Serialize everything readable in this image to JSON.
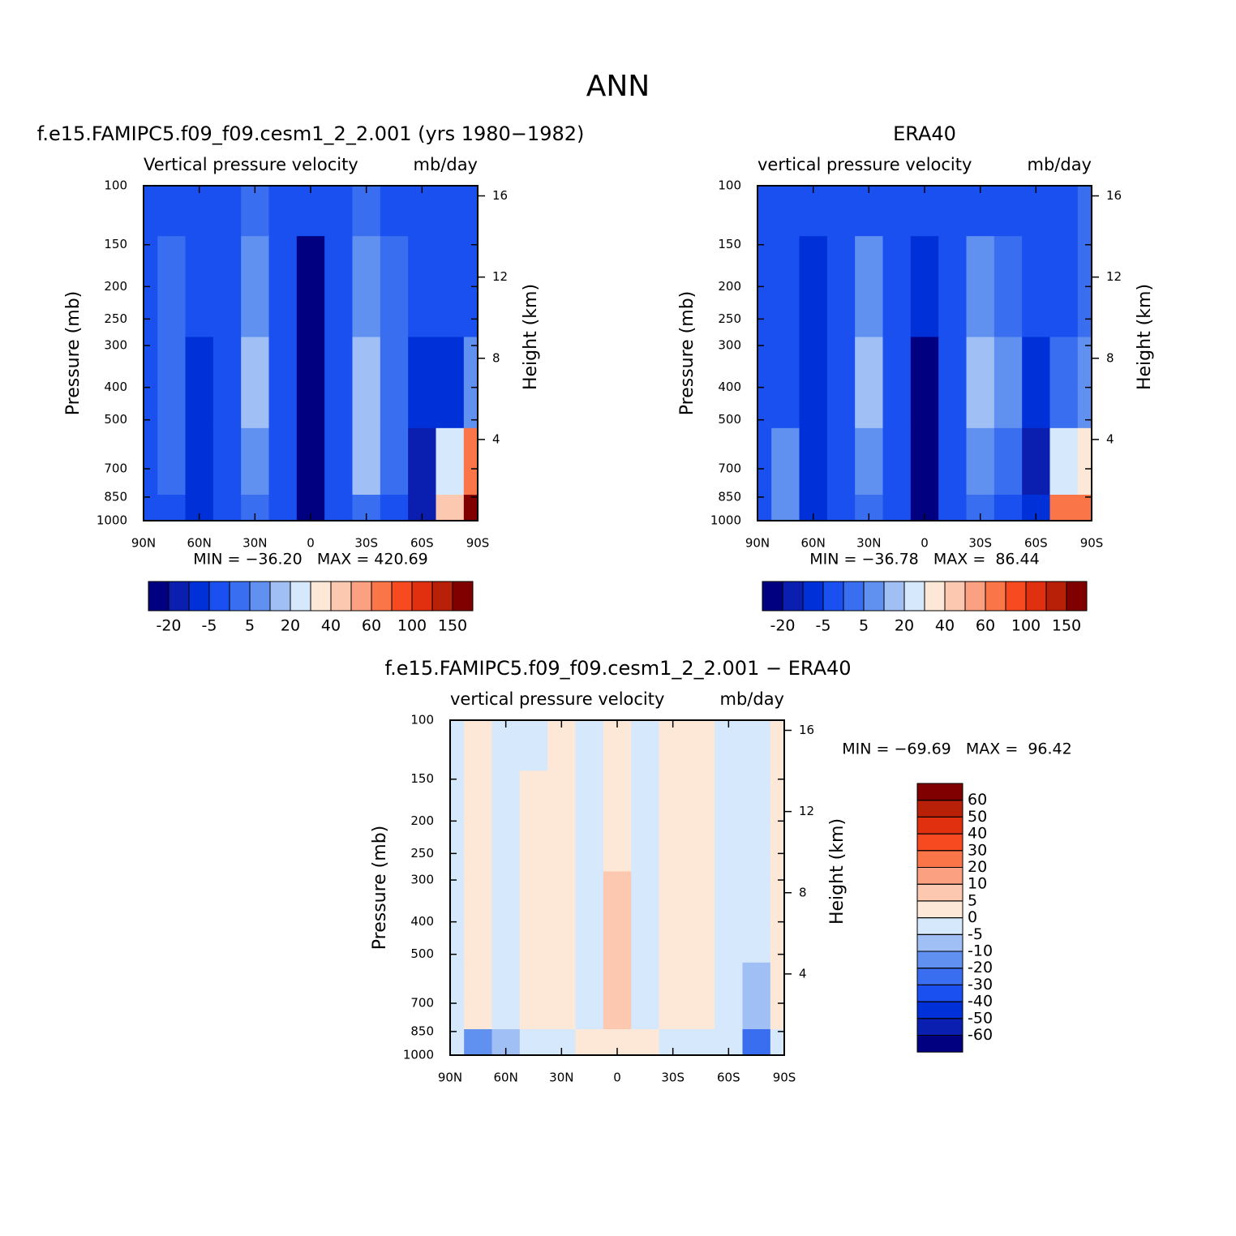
{
  "title": "ANN",
  "chart_data": [
    {
      "type": "contour",
      "title": "f.e15.FAMIPC5.f09_f09.cesm1_2_2.001 (yrs 1980−1982)",
      "subtitle": "Vertical pressure velocity",
      "units": "mb/day",
      "ylabel": "Pressure (mb)",
      "y2label": "Height (km)",
      "annotation": "MIN = −36.20   MAX = 420.69",
      "x": [
        90,
        75,
        60,
        45,
        30,
        15,
        0,
        -15,
        -30,
        -45,
        -60,
        -75,
        -90
      ],
      "y": [
        100,
        200,
        400,
        700,
        1000
      ],
      "z": [
        [
          -2,
          -2,
          -2,
          -1,
          3,
          -2,
          -3,
          -2,
          4,
          -2,
          -2,
          -2,
          -2
        ],
        [
          -3,
          2,
          -3,
          -2,
          10,
          -3,
          -25,
          -2,
          12,
          2,
          -3,
          -4,
          -2
        ],
        [
          -4,
          2,
          -8,
          -3,
          15,
          -3,
          -25,
          -3,
          18,
          4,
          -10,
          -8,
          8
        ],
        [
          -3,
          4,
          -8,
          -2,
          8,
          -2,
          -25,
          -2,
          18,
          4,
          -15,
          25,
          60
        ],
        [
          -5,
          -3,
          -8,
          -2,
          3,
          -3,
          -22,
          -3,
          4,
          -3,
          -15,
          40,
          150
        ]
      ],
      "xlim": [
        90,
        -90
      ],
      "xticks": [
        {
          "value": 90,
          "label": "90N"
        },
        {
          "value": 60,
          "label": "60N"
        },
        {
          "value": 30,
          "label": "30N"
        },
        0,
        {
          "value": -30,
          "label": "30S"
        },
        {
          "value": -60,
          "label": "60S"
        },
        {
          "value": -90,
          "label": "90S"
        }
      ],
      "ylim": [
        1000,
        100
      ],
      "log_y": true,
      "yticks": [
        100,
        150,
        200,
        250,
        300,
        400,
        500,
        700,
        850,
        1000
      ],
      "y2lim": [
        0,
        16.5
      ],
      "y2ticks": [
        4,
        8,
        12,
        16
      ],
      "colorbar": {
        "orientation": "horizontal",
        "levels": [
          -20,
          null,
          -5,
          null,
          5,
          null,
          20,
          null,
          40,
          null,
          60,
          null,
          100,
          null,
          150
        ],
        "colors": [
          "#000080",
          "#0a1fb0",
          "#0030d8",
          "#1a50f0",
          "#3a6ef0",
          "#6090f0",
          "#a0bff5",
          "#d6e8fb",
          "#fde8d8",
          "#fcc8b0",
          "#fba080",
          "#fa7548",
          "#f84a20",
          "#e03010",
          "#b82008",
          "#800000"
        ]
      }
    },
    {
      "type": "contour",
      "title": "ERA40",
      "subtitle": "vertical pressure velocity",
      "units": "mb/day",
      "ylabel": "Pressure (mb)",
      "y2label": "Height (km)",
      "annotation": "MIN = −36.78   MAX =  86.44",
      "x": [
        90,
        75,
        60,
        45,
        30,
        15,
        0,
        -15,
        -30,
        -45,
        -60,
        -75,
        -90
      ],
      "y": [
        100,
        200,
        400,
        700,
        1000
      ],
      "z": [
        [
          -2,
          -3,
          -2,
          -1,
          -2,
          -2,
          -3,
          -2,
          -2,
          -2,
          -3,
          -2,
          2
        ],
        [
          -3,
          -2,
          -6,
          -2,
          8,
          -4,
          -10,
          -2,
          10,
          2,
          -4,
          -3,
          4
        ],
        [
          -4,
          -3,
          -8,
          -2,
          18,
          -3,
          -25,
          -3,
          18,
          5,
          -10,
          4,
          10
        ],
        [
          -3,
          5,
          -8,
          -2,
          8,
          -3,
          -25,
          -3,
          12,
          2,
          -15,
          20,
          30
        ],
        [
          -4,
          10,
          -8,
          -2,
          2,
          -3,
          -22,
          -3,
          2,
          -4,
          -12,
          60,
          60
        ]
      ],
      "xlim": [
        90,
        -90
      ],
      "xticks": [
        {
          "value": 90,
          "label": "90N"
        },
        {
          "value": 60,
          "label": "60N"
        },
        {
          "value": 30,
          "label": "30N"
        },
        0,
        {
          "value": -30,
          "label": "30S"
        },
        {
          "value": -60,
          "label": "60S"
        },
        {
          "value": -90,
          "label": "90S"
        }
      ],
      "ylim": [
        1000,
        100
      ],
      "log_y": true,
      "yticks": [
        100,
        150,
        200,
        250,
        300,
        400,
        500,
        700,
        850,
        1000
      ],
      "y2lim": [
        0,
        16.5
      ],
      "y2ticks": [
        4,
        8,
        12,
        16
      ],
      "colorbar": {
        "orientation": "horizontal",
        "levels": [
          -20,
          null,
          -5,
          null,
          5,
          null,
          20,
          null,
          40,
          null,
          60,
          null,
          100,
          null,
          150
        ],
        "colors": [
          "#000080",
          "#0a1fb0",
          "#0030d8",
          "#1a50f0",
          "#3a6ef0",
          "#6090f0",
          "#a0bff5",
          "#d6e8fb",
          "#fde8d8",
          "#fcc8b0",
          "#fba080",
          "#fa7548",
          "#f84a20",
          "#e03010",
          "#b82008",
          "#800000"
        ]
      }
    },
    {
      "type": "contour",
      "title": "f.e15.FAMIPC5.f09_f09.cesm1_2_2.001 − ERA40",
      "subtitle": "vertical pressure velocity",
      "units": "mb/day",
      "ylabel": "Pressure (mb)",
      "y2label": "Height (km)",
      "annotation": "MIN = −69.69   MAX =  96.42",
      "x": [
        90,
        75,
        60,
        45,
        30,
        15,
        0,
        -15,
        -30,
        -45,
        -60,
        -75,
        -90
      ],
      "y": [
        100,
        200,
        400,
        700,
        1000
      ],
      "z": [
        [
          -2,
          2,
          -2,
          -2,
          2,
          -2,
          2,
          -2,
          2,
          2,
          -2,
          -2,
          2
        ],
        [
          -2,
          2,
          -2,
          2,
          2,
          -2,
          2,
          -2,
          2,
          2,
          -2,
          -2,
          2
        ],
        [
          -2,
          2,
          -2,
          2,
          2,
          -3,
          7,
          -2,
          2,
          2,
          -2,
          -2,
          2
        ],
        [
          -2,
          2,
          -2,
          2,
          2,
          -2,
          7,
          -2,
          2,
          2,
          -2,
          -8,
          2
        ],
        [
          -2,
          -12,
          -8,
          -2,
          -2,
          2,
          2,
          2,
          -2,
          -2,
          -3,
          -30,
          -3
        ]
      ],
      "xlim": [
        90,
        -90
      ],
      "xticks": [
        {
          "value": 90,
          "label": "90N"
        },
        {
          "value": 60,
          "label": "60N"
        },
        {
          "value": 30,
          "label": "30N"
        },
        0,
        {
          "value": -30,
          "label": "30S"
        },
        {
          "value": -60,
          "label": "60S"
        },
        {
          "value": -90,
          "label": "90S"
        }
      ],
      "ylim": [
        1000,
        100
      ],
      "log_y": true,
      "yticks": [
        100,
        150,
        200,
        250,
        300,
        400,
        500,
        700,
        850,
        1000
      ],
      "y2lim": [
        0,
        16.5
      ],
      "y2ticks": [
        4,
        8,
        12,
        16
      ],
      "colorbar": {
        "orientation": "vertical",
        "levels": [
          -60,
          -50,
          -40,
          -30,
          -20,
          -10,
          -5,
          0,
          5,
          10,
          20,
          30,
          40,
          50,
          60
        ],
        "colors": [
          "#000080",
          "#0a1fb0",
          "#0030d8",
          "#1a50f0",
          "#3a6ef0",
          "#6090f0",
          "#a0bff5",
          "#d6e8fb",
          "#fde8d8",
          "#fcc8b0",
          "#fba080",
          "#fa7548",
          "#f84a20",
          "#e03010",
          "#b82008",
          "#800000"
        ]
      }
    }
  ]
}
